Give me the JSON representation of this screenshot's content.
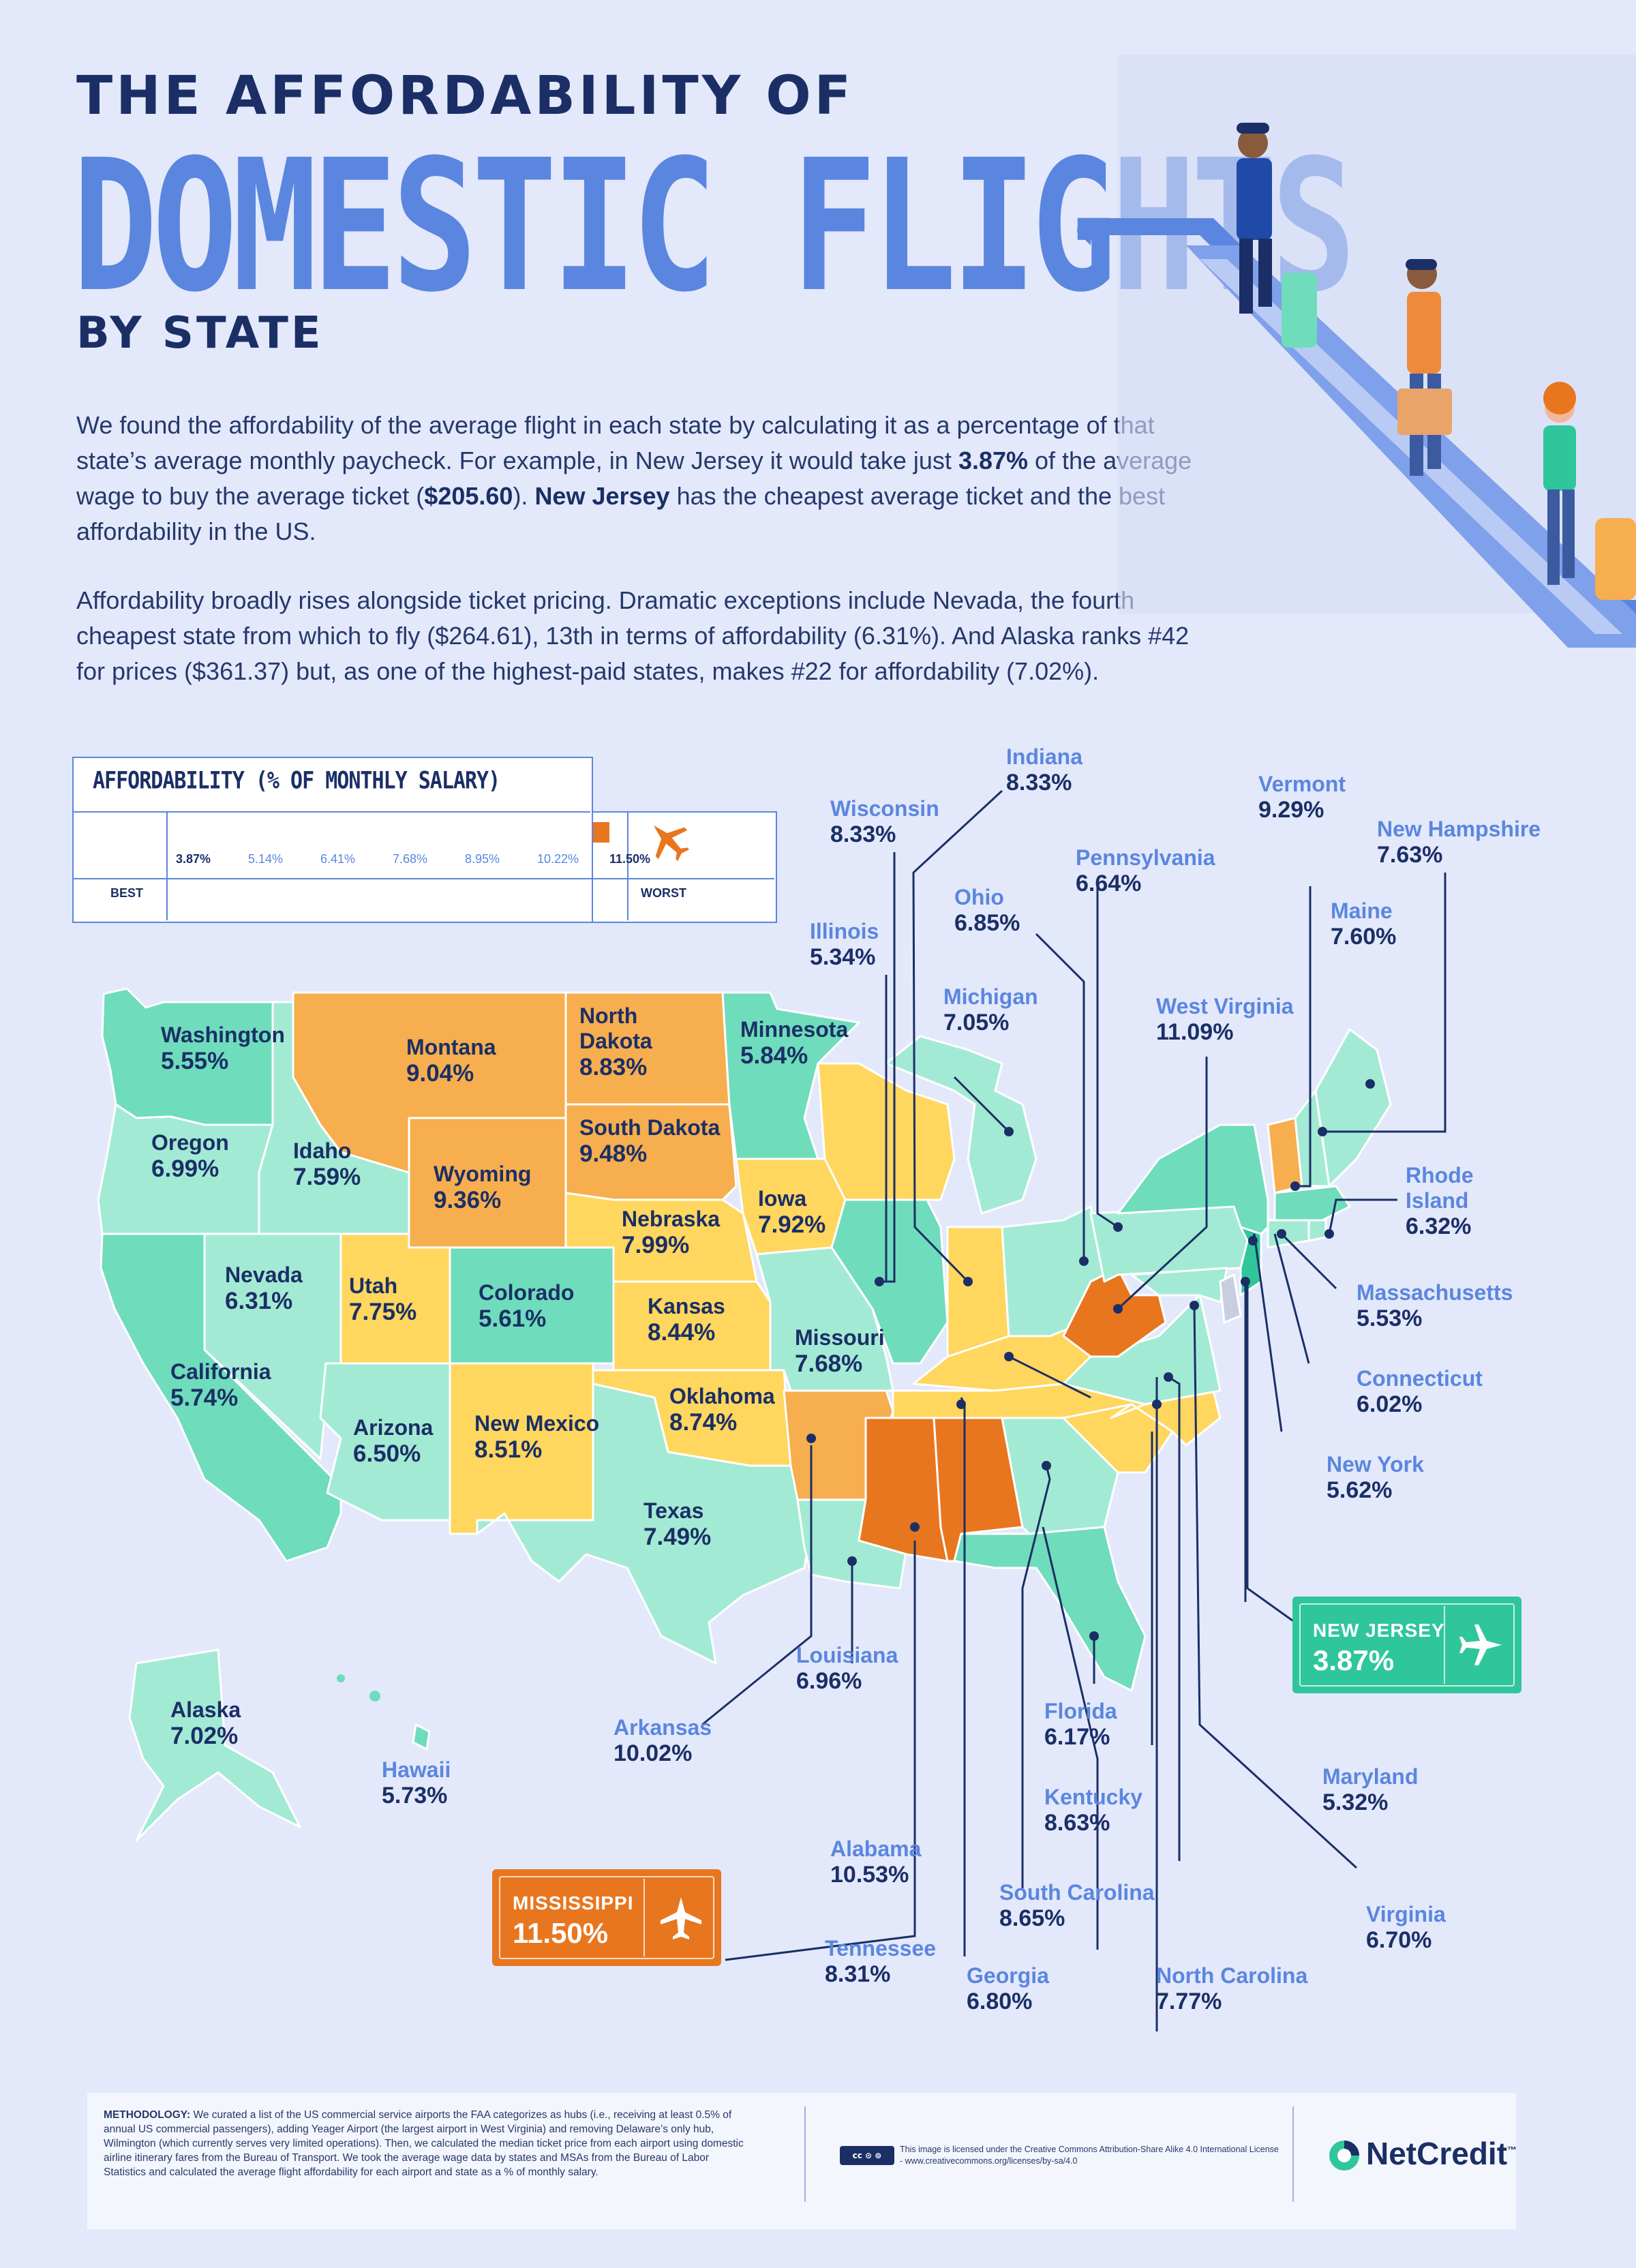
{
  "title": {
    "line1": "THE AFFORDABILITY OF",
    "line2": "DOMESTIC FLIGHTS",
    "line3": "BY STATE"
  },
  "intro": {
    "p1_a": "We found the affordability of the average flight in each state by calculating it as a percentage of that state’s average monthly paycheck. For example, in New Jersey it would take just ",
    "p1_b": "3.87%",
    "p1_c": " of the average wage to buy the average ticket (",
    "p1_d": "$205.60",
    "p1_e": "). ",
    "p1_f": "New Jersey",
    "p1_g": " has the cheapest average ticket and the best affordability in the US.",
    "p2": "Affordability broadly rises alongside ticket pricing. Dramatic exceptions include Nevada, the fourth cheapest state from which to fly ($264.61), 13th in terms of affordability (6.31%). And Alaska ranks #42 for prices ($361.37) but, as one of the highest-paid states, makes #22 for affordability (7.02%)."
  },
  "legend": {
    "title": "AFFORDABILITY (% OF MONTHLY SALARY)",
    "best": "BEST",
    "worst": "WORST",
    "ticks": [
      "3.87%",
      "5.14%",
      "6.41%",
      "7.68%",
      "8.95%",
      "10.22%",
      "11.50%"
    ],
    "colors": [
      "#2fc69b",
      "#6fdcbc",
      "#a3ead4",
      "#ffd65e",
      "#f7ae4e",
      "#e8761f"
    ]
  },
  "states": {
    "washington": {
      "name": "Washington",
      "pct": "5.55%"
    },
    "oregon": {
      "name": "Oregon",
      "pct": "6.99%"
    },
    "california": {
      "name": "California",
      "pct": "5.74%"
    },
    "idaho": {
      "name": "Idaho",
      "pct": "7.59%"
    },
    "nevada": {
      "name": "Nevada",
      "pct": "6.31%"
    },
    "montana": {
      "name": "Montana",
      "pct": "9.04%"
    },
    "wyoming": {
      "name": "Wyoming",
      "pct": "9.36%"
    },
    "utah": {
      "name": "Utah",
      "pct": "7.75%"
    },
    "colorado": {
      "name": "Colorado",
      "pct": "5.61%"
    },
    "arizona": {
      "name": "Arizona",
      "pct": "6.50%"
    },
    "new_mexico": {
      "name": "New Mexico",
      "pct": "8.51%"
    },
    "north_dakota": {
      "name": "North Dakota",
      "pct": "8.83%"
    },
    "south_dakota": {
      "name": "South Dakota",
      "pct": "9.48%"
    },
    "nebraska": {
      "name": "Nebraska",
      "pct": "7.99%"
    },
    "kansas": {
      "name": "Kansas",
      "pct": "8.44%"
    },
    "oklahoma": {
      "name": "Oklahoma",
      "pct": "8.74%"
    },
    "texas": {
      "name": "Texas",
      "pct": "7.49%"
    },
    "minnesota": {
      "name": "Minnesota",
      "pct": "5.84%"
    },
    "iowa": {
      "name": "Iowa",
      "pct": "7.92%"
    },
    "missouri": {
      "name": "Missouri",
      "pct": "7.68%"
    },
    "alaska": {
      "name": "Alaska",
      "pct": "7.02%"
    },
    "hawaii": {
      "name": "Hawaii",
      "pct": "5.73%"
    },
    "indiana": {
      "name": "Indiana",
      "pct": "8.33%"
    },
    "wisconsin": {
      "name": "Wisconsin",
      "pct": "8.33%"
    },
    "illinois": {
      "name": "Illinois",
      "pct": "5.34%"
    },
    "ohio": {
      "name": "Ohio",
      "pct": "6.85%"
    },
    "michigan": {
      "name": "Michigan",
      "pct": "7.05%"
    },
    "pennsylvania": {
      "name": "Pennsylvania",
      "pct": "6.64%"
    },
    "west_virginia": {
      "name": "West Virginia",
      "pct": "11.09%"
    },
    "vermont": {
      "name": "Vermont",
      "pct": "9.29%"
    },
    "new_hampshire": {
      "name": "New Hampshire",
      "pct": "7.63%"
    },
    "maine": {
      "name": "Maine",
      "pct": "7.60%"
    },
    "rhode_island": {
      "name": "Rhode Island",
      "pct": "6.32%"
    },
    "massachusetts": {
      "name": "Massachusetts",
      "pct": "5.53%"
    },
    "connecticut": {
      "name": "Connecticut",
      "pct": "6.02%"
    },
    "new_york": {
      "name": "New York",
      "pct": "5.62%"
    },
    "maryland": {
      "name": "Maryland",
      "pct": "5.32%"
    },
    "virginia": {
      "name": "Virginia",
      "pct": "6.70%"
    },
    "north_carolina": {
      "name": "North Carolina",
      "pct": "7.77%"
    },
    "georgia": {
      "name": "Georgia",
      "pct": "6.80%"
    },
    "tennessee": {
      "name": "Tennessee",
      "pct": "8.31%"
    },
    "south_carolina": {
      "name": "South Carolina",
      "pct": "8.65%"
    },
    "kentucky": {
      "name": "Kentucky",
      "pct": "8.63%"
    },
    "alabama": {
      "name": "Alabama",
      "pct": "10.53%"
    },
    "florida": {
      "name": "Florida",
      "pct": "6.17%"
    },
    "arkansas": {
      "name": "Arkansas",
      "pct": "10.02%"
    },
    "louisiana": {
      "name": "Louisiana",
      "pct": "6.96%"
    }
  },
  "callouts": {
    "new_jersey": {
      "name": "NEW JERSEY",
      "pct": "3.87%",
      "color": "#2fc69b"
    },
    "mississippi": {
      "name": "MISSISSIPPI",
      "pct": "11.50%",
      "color": "#e8761f"
    }
  },
  "footer": {
    "methodology_label": "METHODOLOGY:",
    "methodology": "We curated a list of the US commercial service airports the FAA categorizes as hubs (i.e., receiving at least 0.5% of annual US commercial passengers), adding Yeager Airport (the largest airport in West Virginia) and removing Delaware’s only hub, Wilmington (which currently serves very limited operations). Then, we calculated the median ticket price from each airport using domestic airline itinerary fares from the Bureau of Transport. We took the average wage data by states and MSAs from the Bureau of Labor Statistics and calculated the average flight affordability for each airport and state as a % of monthly salary.",
    "license": "This image is licensed under the Creative Commons Attribution-Share Alike 4.0 International License - www.creativecommons.org/licenses/by-sa/4.0",
    "brand": "NetCredit",
    "trademark": "™"
  }
}
